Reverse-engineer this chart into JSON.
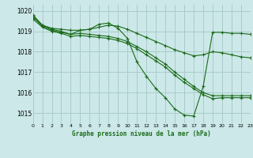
{
  "title": "Graphe pression niveau de la mer (hPa)",
  "bg_color": "#cce8e8",
  "grid_color": "#aacccc",
  "line_color": "#1a6b1a",
  "xlim": [
    0,
    23
  ],
  "ylim": [
    1014.5,
    1020.3
  ],
  "yticks": [
    1015,
    1016,
    1017,
    1018,
    1019,
    1020
  ],
  "xticks": [
    0,
    1,
    2,
    3,
    4,
    5,
    6,
    7,
    8,
    9,
    10,
    11,
    12,
    13,
    14,
    15,
    16,
    17,
    18,
    19,
    20,
    21,
    22,
    23
  ],
  "curve1": [
    1019.8,
    1019.3,
    1019.15,
    1019.1,
    1019.05,
    1019.05,
    1019.1,
    1019.2,
    1019.3,
    1019.25,
    1019.1,
    1018.9,
    1018.7,
    1018.5,
    1018.3,
    1018.1,
    1017.95,
    1017.8,
    1017.85,
    1018.0,
    1017.95,
    1017.85,
    1017.75,
    1017.7
  ],
  "curve2": [
    1019.75,
    1019.3,
    1019.1,
    1019.0,
    1018.85,
    1019.05,
    1019.1,
    1019.35,
    1019.4,
    1019.15,
    1018.65,
    1017.5,
    1016.8,
    1016.2,
    1015.75,
    1015.2,
    1014.9,
    1014.85,
    1016.3,
    1018.95,
    1018.95,
    1018.9,
    1018.9,
    1018.85
  ],
  "curve3": [
    1019.7,
    1019.25,
    1019.05,
    1018.95,
    1018.85,
    1018.9,
    1018.85,
    1018.8,
    1018.75,
    1018.65,
    1018.5,
    1018.25,
    1018.0,
    1017.7,
    1017.4,
    1017.0,
    1016.65,
    1016.3,
    1016.0,
    1015.85,
    1015.85,
    1015.85,
    1015.85,
    1015.85
  ],
  "curve4": [
    1019.6,
    1019.2,
    1019.0,
    1018.9,
    1018.75,
    1018.8,
    1018.75,
    1018.7,
    1018.65,
    1018.55,
    1018.4,
    1018.15,
    1017.85,
    1017.55,
    1017.25,
    1016.85,
    1016.5,
    1016.2,
    1015.9,
    1015.7,
    1015.75,
    1015.75,
    1015.75,
    1015.75
  ]
}
